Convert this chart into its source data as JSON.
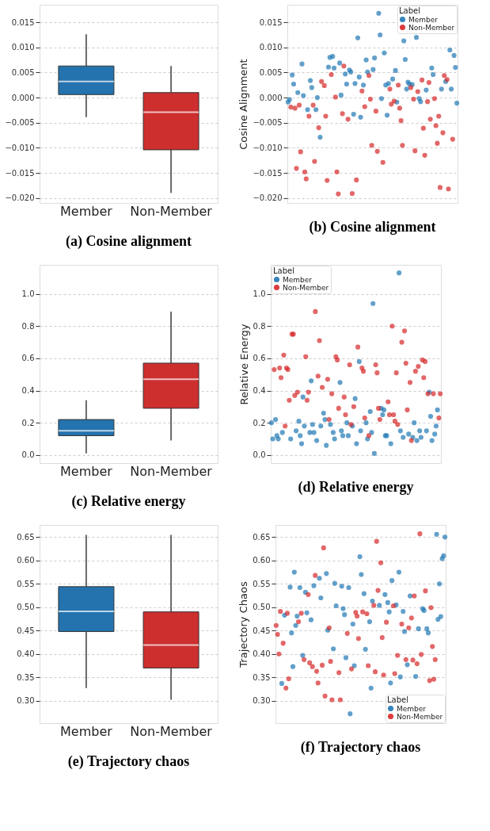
{
  "chart_data": [
    {
      "type": "box",
      "title": "(a) Cosine alignment",
      "categories": [
        "Member",
        "Non-Member"
      ],
      "colors": [
        "#2473ae",
        "#cd2f2f"
      ],
      "boxes": [
        {
          "low": -0.0039,
          "q1": 0.0006,
          "median": 0.0032,
          "q3": 0.0063,
          "high": 0.0126
        },
        {
          "low": -0.019,
          "q1": -0.0104,
          "median": -0.0029,
          "q3": 0.001,
          "high": 0.0063
        }
      ],
      "ylim": [
        -0.021,
        0.0185
      ],
      "yticks": [
        {
          "value": -0.02,
          "label": "−0.020"
        },
        {
          "value": -0.015,
          "label": "−0.015"
        },
        {
          "value": -0.01,
          "label": "−0.010"
        },
        {
          "value": -0.005,
          "label": "−0.005"
        },
        {
          "value": 0,
          "label": "0.000"
        },
        {
          "value": 0.005,
          "label": "0.005"
        },
        {
          "value": 0.01,
          "label": "0.010"
        },
        {
          "value": 0.015,
          "label": "0.015"
        }
      ],
      "grid": "y"
    },
    {
      "type": "scatter",
      "title": "(b) Cosine alignment",
      "ylabel": "Cosine Alignment",
      "legend_title": "Label",
      "legend": "top right",
      "marker": "circle",
      "grid": "y",
      "tick_labels": "y",
      "categories": [
        null,
        null,
        null,
        null,
        null,
        null,
        null,
        null,
        null,
        null,
        null,
        null,
        null,
        null,
        null,
        null,
        null,
        null,
        null,
        null,
        null,
        null,
        null,
        null,
        null,
        null,
        null,
        null,
        null,
        null,
        null,
        null,
        null,
        null,
        null,
        null,
        null,
        null,
        null,
        null,
        null,
        null,
        null,
        null,
        null,
        null,
        null,
        null,
        null,
        null,
        null,
        null,
        null,
        null,
        null,
        null,
        null,
        null,
        null,
        null,
        null,
        null,
        null,
        null,
        null,
        null,
        null,
        null,
        null,
        null,
        null,
        null,
        null,
        null,
        null,
        null,
        null,
        null,
        null,
        null,
        null,
        null,
        null,
        null,
        null,
        null,
        null,
        null,
        null,
        null,
        null,
        null,
        null,
        null,
        null,
        null,
        null,
        null,
        null,
        null,
        null,
        null,
        null,
        null,
        null,
        null,
        null,
        null,
        null,
        null,
        null,
        null,
        null,
        null,
        null,
        null,
        null,
        null,
        null,
        null,
        null,
        null
      ],
      "ylim": [
        -0.021,
        0.0185
      ],
      "yticks": [
        {
          "value": -0.02,
          "label": "−0.020"
        },
        {
          "value": -0.015,
          "label": "−0.015"
        },
        {
          "value": -0.01,
          "label": "−0.010"
        },
        {
          "value": -0.005,
          "label": "−0.005"
        },
        {
          "value": 0,
          "label": "0.000"
        },
        {
          "value": 0.005,
          "label": "0.005"
        },
        {
          "value": 0.01,
          "label": "0.010"
        },
        {
          "value": 0.015,
          "label": "0.015"
        }
      ],
      "series": [
        {
          "name": "Member",
          "color": "#1f77b4",
          "values": [
            -0.0009,
            -0.0004,
            null,
            0.0045,
            0.0027,
            null,
            null,
            0.001,
            null,
            null,
            0.0067,
            0.0004,
            null,
            null,
            -0.0024,
            null,
            0.0034,
            0.002,
            null,
            null,
            -0.0024,
            0.0,
            null,
            -0.0079,
            null,
            null,
            null,
            null,
            null,
            0.0061,
            0.008,
            null,
            0.0082,
            0.0059,
            null,
            null,
            null,
            0.0069,
            0.0005,
            null,
            null,
            0.0047,
            0.0027,
            null,
            0.0055,
            0.0051,
            null,
            -0.0033,
            0.0028,
            null,
            0.0119,
            0.0041,
            -0.0039,
            null,
            0.0025,
            null,
            0.0075,
            0.0051,
            null,
            null,
            null,
            0.0056,
            0.0079,
            null,
            null,
            0.0168,
            0.0125,
            -0.0002,
            null,
            0.0089,
            0.0025,
            -0.0035,
            0.0028,
            null,
            null,
            0.0037,
            null,
            0.0054,
            -0.0009,
            null,
            null,
            null,
            null,
            0.0113,
            0.0076,
            0.0017,
            0.0031,
            0.0027,
            null,
            0.0026,
            null,
            null,
            0.012,
            null,
            -0.0002,
            -0.0008,
            null,
            null,
            null,
            0.0015,
            null,
            null,
            null,
            0.0059,
            0.0046,
            null,
            null,
            null,
            null,
            null,
            0.0017,
            null,
            null,
            0.0032,
            null,
            null,
            0.0095,
            0.0017,
            null,
            0.0084,
            0.006,
            -0.0011
          ]
        },
        {
          "name": "Non-Member",
          "color": "#d62728",
          "values": [
            null,
            null,
            -0.0019,
            null,
            null,
            -0.0021,
            -0.0141,
            null,
            -0.0015,
            -0.0108,
            null,
            null,
            -0.0148,
            -0.0162,
            null,
            -0.0037,
            null,
            null,
            -0.0015,
            -0.0127,
            null,
            null,
            -0.006,
            null,
            0.0032,
            null,
            0.0024,
            -0.0037,
            -0.0165,
            null,
            null,
            0.0046,
            null,
            null,
            0.0001,
            -0.0148,
            -0.0192,
            null,
            null,
            -0.0032,
            0.0063,
            null,
            null,
            -0.0043,
            null,
            null,
            -0.0191,
            null,
            null,
            -0.0164,
            null,
            null,
            null,
            0.0013,
            null,
            -0.0018,
            null,
            null,
            0.0044,
            -0.0003,
            -0.0095,
            null,
            null,
            -0.0027,
            -0.0107,
            null,
            null,
            null,
            -0.0129,
            null,
            null,
            null,
            null,
            0.0017,
            -0.0013,
            null,
            -0.0007,
            null,
            null,
            0.0025,
            -0.0021,
            -0.0046,
            -0.0095,
            null,
            null,
            null,
            null,
            null,
            0.002,
            null,
            -0.0003,
            -0.0106,
            null,
            0.0012,
            null,
            null,
            0.0035,
            -0.0061,
            -0.0115,
            null,
            -0.0008,
            0.003,
            -0.0043,
            null,
            null,
            -0.0002,
            -0.0056,
            -0.0091,
            -0.0037,
            -0.0179,
            null,
            -0.007,
            0.0044,
            null,
            0.0036,
            -0.0182,
            null,
            null,
            -0.0083,
            null,
            null,
            null
          ]
        }
      ]
    },
    {
      "type": "box",
      "title": "(c) Relative energy",
      "categories": [
        "Member",
        "Non-Member"
      ],
      "colors": [
        "#2473ae",
        "#cd2f2f"
      ],
      "boxes": [
        {
          "low": 0.01,
          "q1": 0.12,
          "median": 0.15,
          "q3": 0.22,
          "high": 0.34
        },
        {
          "low": 0.09,
          "q1": 0.29,
          "median": 0.47,
          "q3": 0.57,
          "high": 0.89
        }
      ],
      "ylim": [
        -0.05,
        1.18
      ],
      "yticks": [
        {
          "value": 0,
          "label": "0.0"
        },
        {
          "value": 0.2,
          "label": "0.2"
        },
        {
          "value": 0.4,
          "label": "0.4"
        },
        {
          "value": 0.6,
          "label": "0.6"
        },
        {
          "value": 0.8,
          "label": "0.8"
        },
        {
          "value": 1,
          "label": "1.0"
        }
      ],
      "grid": "y"
    },
    {
      "type": "scatter",
      "title": "(d) Relative energy",
      "ylabel": "Relative Energy",
      "legend_title": "Label",
      "legend": "top left",
      "marker": "circle",
      "grid": "y",
      "tick_labels": "y",
      "categories": [
        null,
        null,
        null,
        null,
        null,
        null,
        null,
        null,
        null,
        null,
        null,
        null,
        null,
        null,
        null,
        null,
        null,
        null,
        null,
        null,
        null,
        null,
        null,
        null,
        null,
        null,
        null,
        null,
        null,
        null,
        null,
        null,
        null,
        null,
        null,
        null,
        null,
        null,
        null,
        null,
        null,
        null,
        null,
        null,
        null,
        null,
        null,
        null,
        null,
        null,
        null,
        null,
        null,
        null,
        null,
        null,
        null,
        null,
        null,
        null,
        null,
        null,
        null,
        null,
        null,
        null,
        null,
        null,
        null,
        null,
        null,
        null,
        null,
        null,
        null,
        null,
        null,
        null,
        null,
        null,
        null,
        null,
        null,
        null,
        null,
        null,
        null,
        null,
        null,
        null,
        null,
        null,
        null,
        null,
        null,
        null,
        null,
        null,
        null,
        null,
        null,
        null,
        null,
        null,
        null,
        null,
        null,
        null,
        null,
        null,
        null,
        null,
        null,
        null,
        null,
        null,
        null,
        null,
        null,
        null,
        null,
        null,
        null,
        null
      ],
      "ylim": [
        -0.05,
        1.18
      ],
      "yticks": [
        {
          "value": 0,
          "label": "0.0"
        },
        {
          "value": 0.2,
          "label": "0.2"
        },
        {
          "value": 0.4,
          "label": "0.4"
        },
        {
          "value": 0.6,
          "label": "0.6"
        },
        {
          "value": 0.8,
          "label": "0.8"
        },
        {
          "value": 1,
          "label": "1.0"
        }
      ],
      "series": [
        {
          "name": "Member",
          "color": "#1f77b4",
          "values": [
            0.2,
            0.1,
            null,
            0.22,
            0.12,
            0.1,
            null,
            null,
            0.14,
            null,
            null,
            null,
            null,
            null,
            0.1,
            null,
            null,
            null,
            0.15,
            null,
            0.21,
            0.12,
            0.07,
            0.36,
            0.18,
            null,
            null,
            null,
            0.14,
            0.46,
            0.19,
            0.14,
            null,
            0.09,
            null,
            null,
            0.18,
            null,
            0.26,
            0.22,
            0.06,
            null,
            null,
            0.19,
            null,
            0.14,
            0.1,
            null,
            null,
            null,
            0.45,
            0.15,
            0.12,
            null,
            null,
            0.2,
            0.12,
            null,
            null,
            0.18,
            null,
            0.35,
            0.07,
            null,
            0.58,
            0.15,
            null,
            null,
            null,
            0.2,
            0.1,
            null,
            0.27,
            0.14,
            0.94,
            0.01,
            null,
            null,
            null,
            null,
            0.29,
            0.25,
            0.28,
            0.12,
            0.12,
            null,
            null,
            0.07,
            null,
            null,
            null,
            null,
            null,
            1.13,
            0.15,
            null,
            0.11,
            null,
            null,
            null,
            0.13,
            null,
            null,
            0.11,
            0.2,
            null,
            0.09,
            null,
            0.15,
            0.11,
            null,
            null,
            null,
            0.15,
            null,
            0.39,
            0.24,
            0.09,
            null,
            0.13,
            0.18,
            0.28,
            null,
            null
          ]
        },
        {
          "name": "Non-Member",
          "color": "#d62728",
          "values": [
            null,
            null,
            0.53,
            null,
            null,
            null,
            0.54,
            0.48,
            null,
            0.62,
            0.18,
            0.54,
            0.53,
            0.34,
            null,
            0.75,
            0.75,
            0.37,
            null,
            0.39,
            null,
            null,
            null,
            null,
            null,
            0.61,
            0.34,
            0.39,
            null,
            null,
            null,
            null,
            0.89,
            null,
            0.49,
            0.71,
            null,
            0.42,
            null,
            null,
            null,
            0.47,
            0.22,
            null,
            0.38,
            null,
            null,
            0.61,
            0.59,
            0.29,
            null,
            null,
            null,
            0.36,
            0.25,
            null,
            null,
            0.56,
            0.19,
            null,
            0.3,
            null,
            null,
            0.67,
            null,
            null,
            0.54,
            0.52,
            0.23,
            null,
            null,
            0.12,
            null,
            null,
            null,
            null,
            0.56,
            0.51,
            0.29,
            0.22,
            null,
            null,
            null,
            null,
            null,
            0.33,
            0.25,
            null,
            0.8,
            0.25,
            0.21,
            0.51,
            0.19,
            null,
            null,
            0.7,
            null,
            0.77,
            0.57,
            0.28,
            null,
            0.45,
            0.09,
            null,
            null,
            0.52,
            null,
            0.55,
            null,
            null,
            0.59,
            0.48,
            0.58,
            null,
            0.38,
            null,
            null,
            null,
            0.38,
            null,
            null,
            null,
            0.23,
            0.38
          ]
        }
      ]
    },
    {
      "type": "box",
      "title": "(e) Trajectory chaos",
      "categories": [
        "Member",
        "Non-Member"
      ],
      "colors": [
        "#2473ae",
        "#cd2f2f"
      ],
      "boxes": [
        {
          "low": 0.327,
          "q1": 0.448,
          "median": 0.491,
          "q3": 0.544,
          "high": 0.655
        },
        {
          "low": 0.302,
          "q1": 0.37,
          "median": 0.419,
          "q3": 0.49,
          "high": 0.655
        }
      ],
      "ylim": [
        0.252,
        0.676
      ],
      "yticks": [
        {
          "value": 0.3,
          "label": "0.30"
        },
        {
          "value": 0.35,
          "label": "0.35"
        },
        {
          "value": 0.4,
          "label": "0.40"
        },
        {
          "value": 0.45,
          "label": "0.45"
        },
        {
          "value": 0.5,
          "label": "0.50"
        },
        {
          "value": 0.55,
          "label": "0.55"
        },
        {
          "value": 0.6,
          "label": "0.60"
        },
        {
          "value": 0.65,
          "label": "0.65"
        }
      ],
      "grid": "y"
    },
    {
      "type": "scatter",
      "title": "(f) Trajectory chaos",
      "ylabel": "Trajectory Chaos",
      "legend_title": "Label",
      "legend": "bottom right",
      "marker": "circle",
      "grid": "y",
      "tick_labels": "y",
      "categories": [
        null,
        null,
        null,
        null,
        null,
        null,
        null,
        null,
        null,
        null,
        null,
        null,
        null,
        null,
        null,
        null,
        null,
        null,
        null,
        null,
        null,
        null,
        null,
        null,
        null,
        null,
        null,
        null,
        null,
        null,
        null,
        null,
        null,
        null,
        null,
        null,
        null,
        null,
        null,
        null,
        null,
        null,
        null,
        null,
        null,
        null,
        null,
        null,
        null,
        null,
        null,
        null,
        null,
        null,
        null,
        null,
        null,
        null,
        null,
        null,
        null,
        null,
        null,
        null,
        null,
        null,
        null,
        null,
        null,
        null,
        null,
        null,
        null,
        null,
        null,
        null,
        null,
        null,
        null,
        null,
        null,
        null,
        null,
        null,
        null,
        null,
        null,
        null,
        null,
        null,
        null,
        null,
        null,
        null,
        null,
        null,
        null,
        null,
        null,
        null,
        null,
        null,
        null,
        null,
        null,
        null,
        null,
        null,
        null,
        null,
        null,
        null,
        null,
        null,
        null,
        null,
        null,
        null,
        null,
        null,
        null,
        null
      ],
      "ylim": [
        0.252,
        0.676
      ],
      "yticks": [
        {
          "value": 0.3,
          "label": "0.30"
        },
        {
          "value": 0.35,
          "label": "0.35"
        },
        {
          "value": 0.4,
          "label": "0.40"
        },
        {
          "value": 0.45,
          "label": "0.45"
        },
        {
          "value": 0.5,
          "label": "0.50"
        },
        {
          "value": 0.55,
          "label": "0.55"
        },
        {
          "value": 0.6,
          "label": "0.60"
        },
        {
          "value": 0.65,
          "label": "0.65"
        }
      ],
      "series": [
        {
          "name": "Member",
          "color": "#1f77b4",
          "values": [
            null,
            null,
            null,
            null,
            0.337,
            null,
            0.483,
            null,
            null,
            null,
            0.543,
            0.445,
            0.373,
            0.575,
            0.461,
            0.481,
            null,
            0.542,
            null,
            0.397,
            null,
            0.532,
            0.488,
            null,
            null,
            0.473,
            null,
            0.546,
            null,
            null,
            null,
            0.562,
            0.52,
            null,
            null,
            null,
            0.572,
            0.451,
            null,
            null,
            null,
            0.411,
            0.551,
            0.503,
            null,
            null,
            null,
            0.545,
            0.497,
            0.484,
            0.392,
            null,
            0.542,
            0.272,
            null,
            0.464,
            0.375,
            null,
            null,
            null,
            0.608,
            0.57,
            null,
            0.529,
            0.41,
            null,
            null,
            0.469,
            0.327,
            0.513,
            null,
            null,
            null,
            null,
            0.504,
            null,
            null,
            null,
            0.527,
            null,
            0.51,
            0.49,
            0.338,
            0.557,
            null,
            null,
            0.505,
            null,
            0.575,
            0.351,
            null,
            0.491,
            0.448,
            null,
            0.377,
            null,
            0.524,
            null,
            null,
            null,
            0.352,
            null,
            0.454,
            null,
            null,
            0.497,
            0.493,
            null,
            0.454,
            0.445,
            null,
            null,
            null,
            null,
            null,
            0.656,
            0.474,
            0.55,
            0.48,
            0.604,
            0.61,
            0.65
          ]
        },
        {
          "name": "Non-Member",
          "color": "#d62728",
          "values": [
            0.461,
            0.442,
            0.4,
            0.491,
            null,
            0.423,
            null,
            0.327,
            0.487,
            0.347,
            null,
            null,
            null,
            null,
            null,
            null,
            0.469,
            null,
            0.487,
            null,
            0.388,
            null,
            null,
            0.527,
            0.381,
            null,
            0.373,
            null,
            0.568,
            0.363,
            0.338,
            null,
            null,
            0.376,
            0.627,
            0.31,
            null,
            null,
            0.456,
            0.384,
            0.302,
            null,
            null,
            null,
            null,
            0.36,
            0.302,
            null,
            null,
            null,
            null,
            0.444,
            null,
            null,
            0.368,
            null,
            null,
            0.489,
            0.481,
            0.433,
            null,
            null,
            0.49,
            null,
            null,
            0.486,
            0.375,
            null,
            null,
            null,
            0.504,
            0.362,
            0.641,
            0.536,
            null,
            0.595,
            0.435,
            0.355,
            null,
            0.468,
            null,
            null,
            null,
            null,
            0.503,
            0.358,
            null,
            0.397,
            null,
            null,
            0.464,
            null,
            null,
            0.388,
            null,
            0.456,
            null,
            0.477,
            0.387,
            0.524,
            null,
            0.379,
            null,
            0.657,
            0.399,
            null,
            null,
            0.535,
            null,
            null,
            0.343,
            0.499,
            0.416,
            0.346,
            0.388,
            null,
            null,
            null,
            null,
            null,
            null,
            null
          ]
        }
      ]
    }
  ]
}
